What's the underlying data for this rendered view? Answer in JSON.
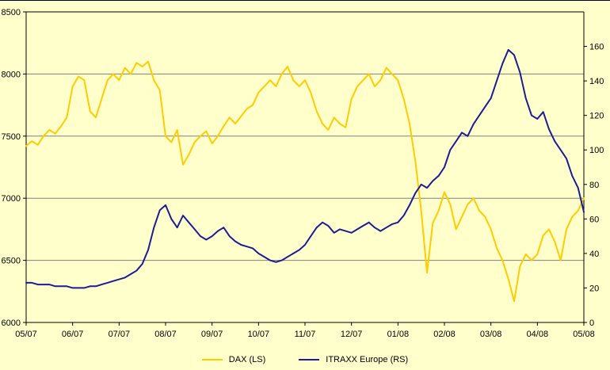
{
  "colors": {
    "background": "#FFFFCC",
    "grid": "#808080",
    "axis": "#000000",
    "dax": "#FFCC00",
    "itraxx": "#1C1C94"
  },
  "chart_data": {
    "type": "line",
    "title": "",
    "xlabel": "",
    "ylabel_left": "",
    "ylabel_right": "",
    "grid": "horizontal",
    "legend_position": "bottom",
    "x_axis": {
      "labels": [
        "05/07",
        "06/07",
        "07/07",
        "08/07",
        "09/07",
        "10/07",
        "11/07",
        "12/07",
        "01/08",
        "02/08",
        "03/08",
        "04/08",
        "05/08"
      ],
      "points_per_month": 8
    },
    "y_left": {
      "min": 6000,
      "max": 8500,
      "ticks": [
        6000,
        6500,
        7000,
        7500,
        8000,
        8500
      ]
    },
    "y_right": {
      "min": 0,
      "max": 160,
      "scale_max": 180,
      "ticks": [
        0,
        20,
        40,
        60,
        80,
        100,
        120,
        140,
        160
      ]
    },
    "series": [
      {
        "name": "DAX (LS)",
        "axis": "left",
        "color": "#FFCC00",
        "values": [
          7420,
          7460,
          7430,
          7500,
          7550,
          7520,
          7580,
          7650,
          7900,
          7980,
          7950,
          7700,
          7650,
          7800,
          7950,
          8000,
          7950,
          8050,
          8000,
          8090,
          8060,
          8100,
          7950,
          7870,
          7500,
          7450,
          7550,
          7270,
          7350,
          7450,
          7500,
          7540,
          7440,
          7500,
          7580,
          7650,
          7600,
          7660,
          7720,
          7750,
          7850,
          7900,
          7950,
          7900,
          8000,
          8060,
          7950,
          7900,
          7950,
          7850,
          7700,
          7600,
          7550,
          7650,
          7600,
          7570,
          7800,
          7900,
          7950,
          8000,
          7900,
          7950,
          8050,
          8000,
          7950,
          7800,
          7600,
          7300,
          6900,
          6400,
          6800,
          6900,
          7050,
          6950,
          6750,
          6850,
          6950,
          7000,
          6900,
          6850,
          6750,
          6600,
          6500,
          6350,
          6170,
          6450,
          6550,
          6500,
          6550,
          6700,
          6750,
          6650,
          6500,
          6750,
          6850,
          6900,
          7000
        ]
      },
      {
        "name": "ITRAXX Europe (RS)",
        "axis": "right",
        "color": "#1C1C94",
        "values": [
          23,
          23,
          22,
          22,
          22,
          21,
          21,
          21,
          20,
          20,
          20,
          21,
          21,
          22,
          23,
          24,
          25,
          26,
          28,
          30,
          34,
          42,
          55,
          65,
          68,
          60,
          55,
          62,
          58,
          54,
          50,
          48,
          50,
          53,
          55,
          50,
          47,
          45,
          44,
          43,
          40,
          38,
          36,
          35,
          36,
          38,
          40,
          42,
          45,
          50,
          55,
          58,
          56,
          52,
          54,
          53,
          52,
          54,
          56,
          58,
          55,
          53,
          55,
          57,
          58,
          62,
          68,
          75,
          80,
          78,
          82,
          85,
          90,
          100,
          105,
          110,
          108,
          115,
          120,
          125,
          130,
          140,
          150,
          158,
          155,
          145,
          130,
          120,
          118,
          122,
          112,
          105,
          100,
          95,
          85,
          78,
          64
        ]
      }
    ]
  },
  "legend": {
    "dax_label": "DAX (LS)",
    "itraxx_label": "ITRAXX Europe (RS)"
  }
}
